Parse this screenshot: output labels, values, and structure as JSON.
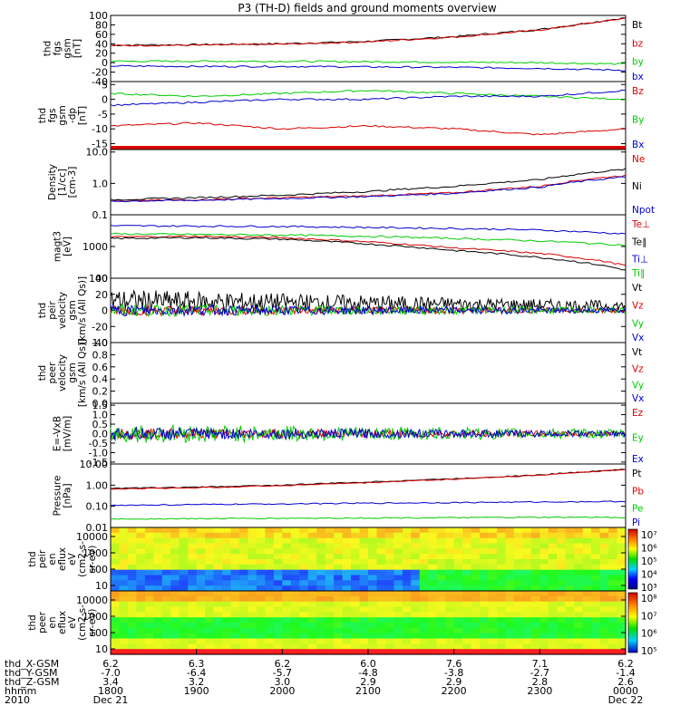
{
  "title": "P3 (TH-D) fields and ground moments overview",
  "chart_data": [
    {
      "type": "line",
      "name": "fgs-gsm",
      "ylabel": [
        "thd",
        "fgs",
        "gsm",
        "[nT]"
      ],
      "ylim": [
        -40,
        100
      ],
      "yticks": [
        100,
        80,
        60,
        40,
        20,
        0,
        -20,
        -40
      ],
      "series": [
        {
          "name": "Bt",
          "color": "#000000",
          "values": [
            37,
            38,
            40,
            45,
            55,
            70,
            95
          ]
        },
        {
          "name": "bz",
          "color": "#dd0000",
          "values": [
            36,
            37,
            39,
            44,
            54,
            69,
            94
          ]
        },
        {
          "name": "by",
          "color": "#00cc00",
          "values": [
            3,
            3,
            3,
            2,
            1,
            0,
            -3
          ]
        },
        {
          "name": "bx",
          "color": "#0000cc",
          "values": [
            -7,
            -8,
            -8,
            -9,
            -10,
            -12,
            -16
          ]
        }
      ]
    },
    {
      "type": "line",
      "name": "fgs-gsm-dp",
      "ylabel": [
        "thd",
        "fgs",
        "gsm",
        "-dp",
        "[nT]"
      ],
      "ylim": [
        -17,
        6
      ],
      "yticks": [
        5,
        0,
        -5,
        -10,
        -15
      ],
      "series": [
        {
          "name": "Bz",
          "color": "#dd0000",
          "values": [
            -9,
            -8,
            -10,
            -9,
            -10,
            -12,
            -10
          ]
        },
        {
          "name": "By",
          "color": "#00cc00",
          "values": [
            2,
            1,
            2,
            3,
            2,
            1,
            0
          ]
        },
        {
          "name": "Bx",
          "color": "#0000cc",
          "values": [
            -2,
            -1,
            0,
            0,
            1,
            1,
            3
          ]
        }
      ]
    },
    {
      "type": "line",
      "name": "density",
      "ylabel": [
        "Density",
        "[1/cc]",
        "[cm-3]"
      ],
      "scale": "log",
      "ylim": [
        0.1,
        12
      ],
      "yticks": [
        "10.0",
        "1.0",
        "0.1"
      ],
      "series": [
        {
          "name": "Ne",
          "color": "#dd0000",
          "values": [
            0.28,
            0.3,
            0.35,
            0.4,
            0.5,
            0.8,
            1.8
          ]
        },
        {
          "name": "Ni",
          "color": "#000000",
          "values": [
            0.3,
            0.35,
            0.42,
            0.55,
            0.8,
            1.3,
            2.8
          ]
        },
        {
          "name": "Npot",
          "color": "#0000cc",
          "values": [
            0.27,
            0.29,
            0.33,
            0.38,
            0.48,
            0.75,
            1.6
          ]
        }
      ]
    },
    {
      "type": "line",
      "name": "temperature",
      "ylabel": [
        "magt3",
        "[eV]"
      ],
      "scale": "log",
      "ylim": [
        100,
        10000
      ],
      "yticks": [
        "1000",
        "100"
      ],
      "series": [
        {
          "name": "Te⊥",
          "color": "#dd0000",
          "values": [
            2000,
            2100,
            1900,
            1400,
            900,
            600,
            250
          ]
        },
        {
          "name": "Te∥",
          "color": "#000000",
          "values": [
            1800,
            1900,
            1700,
            1200,
            750,
            450,
            180
          ]
        },
        {
          "name": "Ti⊥",
          "color": "#0000cc",
          "values": [
            4500,
            4400,
            4300,
            4000,
            3700,
            3300,
            2500
          ]
        },
        {
          "name": "Ti∥",
          "color": "#00cc00",
          "values": [
            2500,
            2400,
            2300,
            2100,
            1800,
            1500,
            1100
          ]
        }
      ]
    },
    {
      "type": "line",
      "name": "peir-velocity",
      "ylabel": [
        "thd",
        "peir",
        "velocity",
        "gsm",
        "[km/s (All Qs)]"
      ],
      "ylim": [
        -40,
        40
      ],
      "yticks": [
        40,
        20,
        0,
        -20,
        -40
      ],
      "series": [
        {
          "name": "Vt",
          "color": "#000000"
        },
        {
          "name": "Vz",
          "color": "#dd0000"
        },
        {
          "name": "Vy",
          "color": "#00cc00"
        },
        {
          "name": "Vx",
          "color": "#0000cc"
        }
      ]
    },
    {
      "type": "line",
      "name": "peer-velocity",
      "ylabel": [
        "thd",
        "peer",
        "velocity",
        "gsm",
        "[km/s (All Qs)]"
      ],
      "ylim": [
        0,
        1
      ],
      "yticks": [
        "1.0",
        "0.8",
        "0.6",
        "0.4",
        "0.2",
        "0.0"
      ],
      "series": [
        {
          "name": "Vt",
          "color": "#000000"
        },
        {
          "name": "Vz",
          "color": "#dd0000"
        },
        {
          "name": "Vy",
          "color": "#00cc00"
        },
        {
          "name": "Vx",
          "color": "#0000cc"
        }
      ]
    },
    {
      "type": "line",
      "name": "e-field",
      "ylabel": [
        "E=-VxB",
        "[mV/m]"
      ],
      "ylim": [
        -1.6,
        1.6
      ],
      "yticks": [
        "1.5",
        "1.0",
        "0.5",
        "0.0",
        "-0.5",
        "-1.0",
        "-1.5"
      ],
      "series": [
        {
          "name": "Ez",
          "color": "#dd0000"
        },
        {
          "name": "Ey",
          "color": "#00cc00"
        },
        {
          "name": "Ex",
          "color": "#0000cc"
        }
      ]
    },
    {
      "type": "line",
      "name": "pressure",
      "ylabel": [
        "Pressure",
        "[nPa]"
      ],
      "scale": "log",
      "ylim": [
        0.01,
        10
      ],
      "yticks": [
        "10.00",
        "1.00",
        "0.10",
        "0.01"
      ],
      "series": [
        {
          "name": "Pt",
          "color": "#000000",
          "values": [
            0.7,
            0.8,
            1.0,
            1.4,
            2.0,
            3.0,
            5.5
          ]
        },
        {
          "name": "Pb",
          "color": "#dd0000",
          "values": [
            0.65,
            0.75,
            0.95,
            1.3,
            1.9,
            2.9,
            5.3
          ]
        },
        {
          "name": "Pe",
          "color": "#00cc00",
          "values": [
            0.025,
            0.026,
            0.027,
            0.028,
            0.029,
            0.03,
            0.03
          ]
        },
        {
          "name": "Pi",
          "color": "#0000cc",
          "values": [
            0.11,
            0.12,
            0.13,
            0.14,
            0.15,
            0.16,
            0.17
          ]
        }
      ]
    },
    {
      "type": "heatmap",
      "name": "peir-spectrogram",
      "ylabel": [
        "thd",
        "peir",
        "en",
        "eflux",
        "eV",
        "(cm2-s-",
        "sr-eV)"
      ],
      "yticks": [
        "10000",
        "1000",
        "100",
        "10"
      ],
      "colorbar": [
        "10⁷",
        "10⁶",
        "10⁵",
        "10⁴",
        "10³"
      ]
    },
    {
      "type": "heatmap",
      "name": "peer-spectrogram",
      "ylabel": [
        "thd",
        "peer",
        "en",
        "eflux",
        "eV",
        "(cm2-s-",
        "sr-eV)"
      ],
      "yticks": [
        "10000",
        "1000",
        "100",
        "10"
      ],
      "colorbar": [
        "10⁸",
        "10⁷",
        "10⁶",
        "10⁵"
      ]
    }
  ],
  "x_axis": {
    "row_labels": [
      "thd_X-GSM",
      "thd_Y-GSM",
      "thd_Z-GSM",
      "hhmm",
      "2010"
    ],
    "columns": [
      {
        "x": "6.2",
        "y": "-7.0",
        "z": "3.4",
        "hhmm": "1800",
        "date": "Dec 21"
      },
      {
        "x": "6.3",
        "y": "-6.4",
        "z": "3.2",
        "hhmm": "1900",
        "date": ""
      },
      {
        "x": "6.2",
        "y": "-5.7",
        "z": "3.0",
        "hhmm": "2000",
        "date": ""
      },
      {
        "x": "6.0",
        "y": "-4.8",
        "z": "2.9",
        "hhmm": "2100",
        "date": ""
      },
      {
        "x": "7.6",
        "y": "-3.8",
        "z": "2.9",
        "hhmm": "2200",
        "date": ""
      },
      {
        "x": "7.1",
        "y": "-2.7",
        "z": "2.8",
        "hhmm": "2300",
        "date": ""
      },
      {
        "x": "6.2",
        "y": "-1.4",
        "z": "2.6",
        "hhmm": "0000",
        "date": "Dec 22"
      }
    ]
  }
}
